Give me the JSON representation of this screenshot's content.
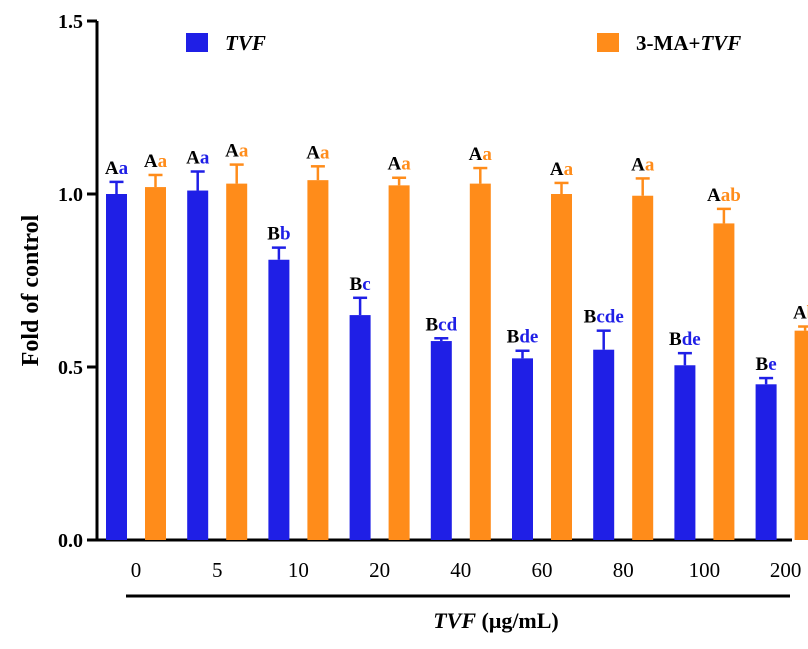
{
  "chart_data": {
    "type": "bar",
    "title": "",
    "ylabel": "Fold of control",
    "xlabel_italic": "TVF",
    "xlabel_rest": " (μg/mL)",
    "ylim": [
      0,
      1.5
    ],
    "yticks": [
      "0.0",
      "0.5",
      "1.0",
      "1.5"
    ],
    "categories": [
      "0",
      "5",
      "10",
      "20",
      "40",
      "60",
      "80",
      "100",
      "200"
    ],
    "legend_position": "top",
    "series": [
      {
        "name": "TVF",
        "name_parts": [
          {
            "text": "TVF",
            "italic": true
          }
        ],
        "color": "#1f1fe6",
        "values": [
          1.0,
          1.01,
          0.81,
          0.65,
          0.575,
          0.525,
          0.55,
          0.505,
          0.45
        ],
        "errors": [
          0.035,
          0.055,
          0.035,
          0.05,
          0.008,
          0.022,
          0.055,
          0.035,
          0.018
        ],
        "labels_upper": [
          "A",
          "A",
          "B",
          "B",
          "B",
          "B",
          "B",
          "B",
          "B"
        ],
        "labels_lower": [
          "a",
          "a",
          "b",
          "c",
          "cd",
          "de",
          "cde",
          "de",
          "e"
        ]
      },
      {
        "name": "3-MA+TVF",
        "name_parts": [
          {
            "text": "3-MA+",
            "italic": false
          },
          {
            "text": "TVF",
            "italic": true
          }
        ],
        "color": "#ff8c1a",
        "values": [
          1.02,
          1.03,
          1.04,
          1.025,
          1.03,
          1.0,
          0.995,
          0.915,
          0.605
        ],
        "errors": [
          0.035,
          0.055,
          0.04,
          0.022,
          0.045,
          0.032,
          0.05,
          0.042,
          0.012
        ],
        "labels_upper": [
          "A",
          "A",
          "A",
          "A",
          "A",
          "A",
          "A",
          "A",
          "A"
        ],
        "labels_lower": [
          "a",
          "a",
          "a",
          "a",
          "a",
          "a",
          "a",
          "ab",
          "b"
        ]
      }
    ],
    "colors": {
      "upper_label": "#000000",
      "axis": "#000000"
    }
  }
}
